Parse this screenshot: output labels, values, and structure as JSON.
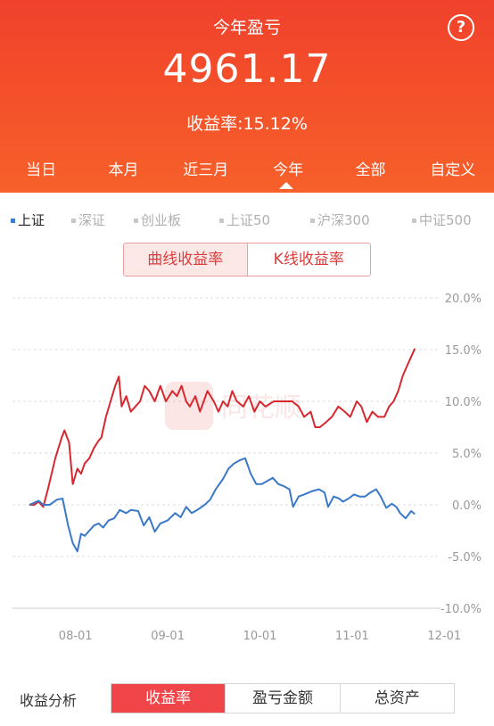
{
  "header": {
    "title": "今年盈亏",
    "help_symbol": "?",
    "amount": "4961.17",
    "rate_text": "收益率:15.12%"
  },
  "period_tabs": [
    {
      "label": "当日"
    },
    {
      "label": "本月"
    },
    {
      "label": "近三月"
    },
    {
      "label": "今年",
      "selected": true
    },
    {
      "label": "全部"
    },
    {
      "label": "自定义"
    }
  ],
  "indices": [
    {
      "label": "上证",
      "active": true
    },
    {
      "label": "深证"
    },
    {
      "label": "创业板"
    },
    {
      "label": "上证50"
    },
    {
      "label": "沪深300"
    },
    {
      "label": "中证500"
    }
  ],
  "chart_toggle": {
    "curve": "曲线收益率",
    "kline": "K线收益率",
    "selected": "curve"
  },
  "watermark": "同花顺",
  "bottom": {
    "label": "收益分析",
    "segments": [
      {
        "label": "收益率",
        "selected": true
      },
      {
        "label": "盈亏金额"
      },
      {
        "label": "总资产"
      }
    ]
  },
  "colors": {
    "accent": "#f0412c",
    "portfolio": "#d7282f",
    "index": "#3a78c8",
    "grid": "#dddddd"
  },
  "chart_data": {
    "type": "line",
    "x_ticks": [
      "08-01",
      "09-01",
      "10-01",
      "11-01",
      "12-01"
    ],
    "y_ticks": [
      "20.0%",
      "15.0%",
      "10.0%",
      "5.0%",
      "0.0%",
      "-5.0%",
      "-10.0%"
    ],
    "ylim": [
      -10,
      20
    ],
    "xlim": [
      0,
      5
    ],
    "grid": true,
    "series": [
      {
        "key": "portfolio",
        "points": [
          [
            0,
            0
          ],
          [
            0.05,
            0
          ],
          [
            0.1,
            0.3
          ],
          [
            0.15,
            -0.2
          ],
          [
            0.2,
            1.5
          ],
          [
            0.28,
            4.5
          ],
          [
            0.35,
            6.5
          ],
          [
            0.38,
            7.2
          ],
          [
            0.43,
            6
          ],
          [
            0.47,
            2
          ],
          [
            0.52,
            3.5
          ],
          [
            0.56,
            3
          ],
          [
            0.6,
            4
          ],
          [
            0.65,
            4.5
          ],
          [
            0.7,
            5.5
          ],
          [
            0.75,
            6.2
          ],
          [
            0.78,
            6.5
          ],
          [
            0.83,
            8.5
          ],
          [
            0.88,
            10
          ],
          [
            0.93,
            11.5
          ],
          [
            0.97,
            12.4
          ],
          [
            1.0,
            9.5
          ],
          [
            1.05,
            10.5
          ],
          [
            1.1,
            9
          ],
          [
            1.15,
            9.5
          ],
          [
            1.2,
            10
          ],
          [
            1.25,
            11.5
          ],
          [
            1.3,
            11
          ],
          [
            1.36,
            10
          ],
          [
            1.42,
            11.5
          ],
          [
            1.48,
            10
          ],
          [
            1.55,
            11
          ],
          [
            1.6,
            10.5
          ],
          [
            1.65,
            11.5
          ],
          [
            1.7,
            10
          ],
          [
            1.74,
            9.5
          ],
          [
            1.8,
            10.5
          ],
          [
            1.85,
            9
          ],
          [
            1.93,
            11
          ],
          [
            2.0,
            10
          ],
          [
            2.05,
            9
          ],
          [
            2.1,
            10
          ],
          [
            2.15,
            9.5
          ],
          [
            2.2,
            11
          ],
          [
            2.25,
            10
          ],
          [
            2.32,
            9.5
          ],
          [
            2.38,
            10.5
          ],
          [
            2.44,
            9
          ],
          [
            2.5,
            10
          ],
          [
            2.56,
            9.5
          ],
          [
            2.65,
            10
          ],
          [
            2.75,
            10
          ],
          [
            2.85,
            10
          ],
          [
            2.92,
            9.5
          ],
          [
            2.98,
            8.5
          ],
          [
            3.05,
            9
          ],
          [
            3.1,
            7.5
          ],
          [
            3.15,
            7.5
          ],
          [
            3.22,
            8
          ],
          [
            3.28,
            8.5
          ],
          [
            3.35,
            9.5
          ],
          [
            3.42,
            9
          ],
          [
            3.48,
            8.5
          ],
          [
            3.55,
            10
          ],
          [
            3.6,
            9.5
          ],
          [
            3.66,
            8
          ],
          [
            3.72,
            9
          ],
          [
            3.78,
            8.5
          ],
          [
            3.85,
            8.5
          ],
          [
            3.9,
            9.5
          ],
          [
            3.95,
            10
          ],
          [
            4.0,
            11
          ],
          [
            4.05,
            12.5
          ],
          [
            4.1,
            13.5
          ],
          [
            4.15,
            14.5
          ],
          [
            4.18,
            15.1
          ]
        ]
      },
      {
        "key": "index",
        "points": [
          [
            0,
            0
          ],
          [
            0.1,
            0.4
          ],
          [
            0.15,
            0
          ],
          [
            0.22,
            0
          ],
          [
            0.3,
            0.5
          ],
          [
            0.36,
            0.6
          ],
          [
            0.42,
            -2
          ],
          [
            0.47,
            -3.7
          ],
          [
            0.52,
            -4.5
          ],
          [
            0.56,
            -2.8
          ],
          [
            0.6,
            -3
          ],
          [
            0.65,
            -2.5
          ],
          [
            0.7,
            -2
          ],
          [
            0.75,
            -1.8
          ],
          [
            0.8,
            -2.2
          ],
          [
            0.86,
            -1.5
          ],
          [
            0.92,
            -1.3
          ],
          [
            0.98,
            -0.5
          ],
          [
            1.05,
            -0.8
          ],
          [
            1.1,
            -0.5
          ],
          [
            1.18,
            -0.6
          ],
          [
            1.24,
            -2
          ],
          [
            1.3,
            -1.2
          ],
          [
            1.36,
            -2.6
          ],
          [
            1.42,
            -1.8
          ],
          [
            1.5,
            -1.5
          ],
          [
            1.58,
            -0.8
          ],
          [
            1.64,
            -1.2
          ],
          [
            1.7,
            -0.2
          ],
          [
            1.76,
            -0.8
          ],
          [
            1.82,
            -0.5
          ],
          [
            1.9,
            0
          ],
          [
            1.96,
            0.5
          ],
          [
            2.02,
            1.5
          ],
          [
            2.1,
            2.5
          ],
          [
            2.16,
            3.5
          ],
          [
            2.22,
            4
          ],
          [
            2.28,
            4.3
          ],
          [
            2.34,
            4.5
          ],
          [
            2.4,
            3
          ],
          [
            2.46,
            2
          ],
          [
            2.52,
            2
          ],
          [
            2.58,
            2.3
          ],
          [
            2.64,
            2.6
          ],
          [
            2.7,
            2
          ],
          [
            2.76,
            1.8
          ],
          [
            2.82,
            1.5
          ],
          [
            2.86,
            -0.2
          ],
          [
            2.92,
            0.8
          ],
          [
            2.98,
            1
          ],
          [
            3.06,
            1.3
          ],
          [
            3.14,
            1.5
          ],
          [
            3.2,
            1.2
          ],
          [
            3.24,
            -0.2
          ],
          [
            3.3,
            0.8
          ],
          [
            3.36,
            0.6
          ],
          [
            3.4,
            0.3
          ],
          [
            3.46,
            0.6
          ],
          [
            3.52,
            1
          ],
          [
            3.58,
            0.8
          ],
          [
            3.64,
            0.8
          ],
          [
            3.7,
            1.2
          ],
          [
            3.76,
            1.5
          ],
          [
            3.81,
            0.8
          ],
          [
            3.87,
            -0.3
          ],
          [
            3.93,
            0.1
          ],
          [
            3.98,
            -0.2
          ],
          [
            4.02,
            -0.8
          ],
          [
            4.08,
            -1.3
          ],
          [
            4.14,
            -0.6
          ],
          [
            4.18,
            -0.9
          ]
        ]
      }
    ]
  }
}
